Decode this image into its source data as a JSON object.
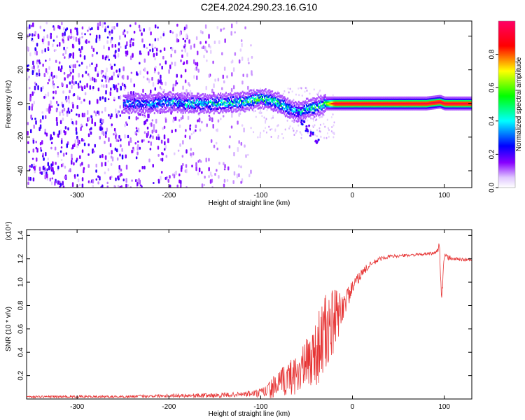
{
  "figure_title": "C2E4.2024.290.23.16.G10",
  "chart_data": [
    {
      "type": "heatmap",
      "xlabel": "Height of straight line (km)",
      "ylabel": "Frequency (Hz)",
      "xlim": [
        -355,
        130
      ],
      "ylim": [
        -50,
        49
      ],
      "xticks": [
        -300,
        -200,
        -100,
        0,
        100
      ],
      "xtick_labels": [
        "-300",
        "-200",
        "-100",
        "0",
        "100"
      ],
      "yticks": [
        -40,
        -20,
        0,
        20,
        40
      ],
      "ytick_labels": [
        "-40",
        "-20",
        "0",
        "20",
        "40"
      ],
      "colorbar": {
        "label": "Normalized spectral amplitude",
        "range": [
          0,
          1
        ],
        "ticks": [
          0.0,
          0.2,
          0.4,
          0.6,
          0.8
        ],
        "tick_labels": [
          "0.0",
          "0.2",
          "0.4",
          "0.6",
          "0.8"
        ],
        "colormap": [
          "#ffffff",
          "#8800ff",
          "#0000ff",
          "#00ffff",
          "#00ff00",
          "#ffff00",
          "#ff0000",
          "#ff0066"
        ]
      },
      "ridge": {
        "x": [
          -250,
          -220,
          -200,
          -180,
          -150,
          -120,
          -100,
          -90,
          -80,
          -70,
          -60,
          -50,
          -40,
          -30,
          -20,
          0,
          20,
          50,
          80,
          95,
          100,
          130
        ],
        "y": [
          0,
          0,
          1,
          0,
          0,
          1,
          3,
          2,
          0,
          -3,
          -5,
          -3,
          -2,
          0,
          0,
          0,
          0,
          0,
          0,
          1,
          0,
          0
        ],
        "strength": [
          0.35,
          0.4,
          0.45,
          0.45,
          0.5,
          0.55,
          0.6,
          0.6,
          0.55,
          0.5,
          0.45,
          0.5,
          0.55,
          0.6,
          0.95,
          0.95,
          0.95,
          0.95,
          0.95,
          0.95,
          0.95,
          0.95
        ]
      },
      "branch": {
        "x": [
          -60,
          -55,
          -50,
          -45,
          -40
        ],
        "y": [
          -6,
          -10,
          -14,
          -18,
          -22
        ]
      },
      "noise_region": {
        "x": [
          -355,
          -110
        ],
        "ylim": [
          -50,
          49
        ]
      }
    },
    {
      "type": "line",
      "xlabel": "Height of straight line (km)",
      "ylabel": "SNR (10 * v/v)",
      "scale_label": "(x10⁴)",
      "xlim": [
        -355,
        130
      ],
      "ylim": [
        0,
        1.45
      ],
      "xticks": [
        -300,
        -200,
        -100,
        0,
        100
      ],
      "xtick_labels": [
        "-300",
        "-200",
        "-100",
        "0",
        "100"
      ],
      "yticks": [
        0.2,
        0.4,
        0.6,
        0.8,
        1.0,
        1.2,
        1.4
      ],
      "ytick_labels": [
        "0.2",
        "0.4",
        "0.6",
        "0.8",
        "1.0",
        "1.2",
        "1.4"
      ],
      "color": "#e63333",
      "series": [
        {
          "x": [
            -355,
            -300,
            -250,
            -200,
            -150,
            -120,
            -100,
            -90,
            -80,
            -70,
            -60,
            -50,
            -40,
            -30,
            -20,
            -10,
            0,
            10,
            20,
            30,
            40,
            60,
            80,
            90,
            95,
            97,
            100,
            110,
            130
          ],
          "values": [
            0.02,
            0.02,
            0.02,
            0.03,
            0.03,
            0.04,
            0.05,
            0.08,
            0.12,
            0.18,
            0.22,
            0.3,
            0.4,
            0.55,
            0.65,
            0.8,
            0.95,
            1.08,
            1.15,
            1.2,
            1.22,
            1.23,
            1.24,
            1.25,
            1.3,
            0.85,
            1.22,
            1.2,
            1.19
          ],
          "noise_amp": [
            0.01,
            0.01,
            0.01,
            0.015,
            0.02,
            0.02,
            0.04,
            0.08,
            0.12,
            0.15,
            0.18,
            0.22,
            0.3,
            0.35,
            0.3,
            0.12,
            0.06,
            0.04,
            0.03,
            0.02,
            0.015,
            0.012,
            0.012,
            0.015,
            0.05,
            0.05,
            0.03,
            0.015,
            0.015
          ]
        }
      ]
    }
  ]
}
